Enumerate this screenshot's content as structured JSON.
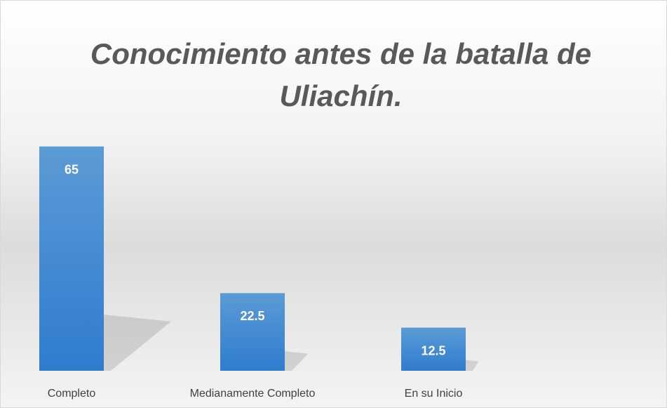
{
  "chart_data": {
    "type": "bar",
    "title": "Conocimiento antes de la batalla de Uliachín.",
    "categories": [
      "Completo",
      "Medianamente Completo",
      "En su Inicio"
    ],
    "values": [
      65,
      22.5,
      12.5
    ],
    "color": "#4a8fd6",
    "ylim": [
      0,
      70
    ]
  }
}
